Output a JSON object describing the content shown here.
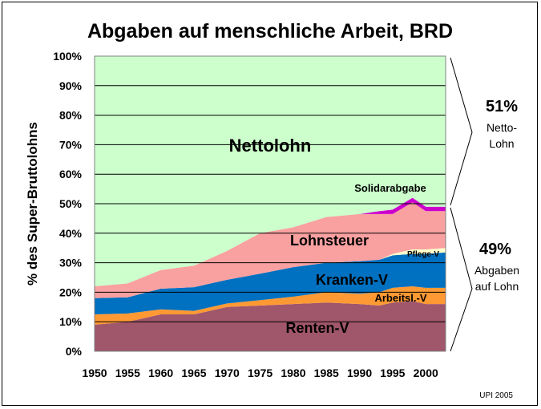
{
  "chart_data": {
    "type": "area",
    "stacked": true,
    "title": "Abgaben auf menschliche Arbeit, BRD",
    "ylabel": "% des Super-Bruttolohns",
    "xlabel": "",
    "ylim": [
      0,
      100
    ],
    "xlim": [
      1950,
      2003
    ],
    "grid": true,
    "y_ticks": [
      "0%",
      "10%",
      "20%",
      "30%",
      "40%",
      "50%",
      "60%",
      "70%",
      "80%",
      "90%",
      "100%"
    ],
    "x_ticks": [
      "1950",
      "1955",
      "1960",
      "1965",
      "1970",
      "1975",
      "1980",
      "1985",
      "1990",
      "1995",
      "2000"
    ],
    "x": [
      1950,
      1955,
      1960,
      1965,
      1970,
      1975,
      1980,
      1985,
      1990,
      1993,
      1995,
      1998,
      2000,
      2003
    ],
    "series": [
      {
        "name": "Renten-V",
        "color": "#a0566b",
        "values": [
          9,
          10,
          12.5,
          12.5,
          15,
          15.5,
          16,
          16.5,
          16,
          15.5,
          16.5,
          17,
          16,
          16
        ]
      },
      {
        "name": "Arbeitsl.-V",
        "color": "#ff9933",
        "values": [
          3.5,
          2.8,
          1.7,
          1.2,
          1.2,
          1.8,
          2.5,
          3.5,
          3.5,
          4.5,
          5,
          5,
          5.5,
          5.5
        ]
      },
      {
        "name": "Kranken-V",
        "color": "#0070c0",
        "values": [
          5.5,
          5.5,
          7,
          8,
          8,
          9,
          10,
          10,
          11,
          11,
          11,
          11,
          11.5,
          12
        ]
      },
      {
        "name": "Pflege-V",
        "color": "#ffffcc",
        "values": [
          0,
          0,
          0,
          0,
          0,
          0,
          0,
          0,
          0,
          0,
          0.5,
          1.5,
          1.5,
          1.5
        ]
      },
      {
        "name": "Lohnsteuer",
        "color": "#f9a0a0",
        "values": [
          4,
          4.7,
          6.3,
          7.3,
          9.8,
          13.7,
          13.5,
          15.5,
          16,
          15.5,
          13.5,
          16,
          13,
          12.5
        ]
      },
      {
        "name": "Solidarabgabe",
        "color": "#cc00cc",
        "values": [
          0,
          0,
          0,
          0,
          0,
          0,
          0,
          0,
          0,
          1,
          1.5,
          1.5,
          1.5,
          1.5
        ]
      },
      {
        "name": "Nettolohn",
        "color": "#ccffcc",
        "values": [
          78,
          77,
          72.5,
          71,
          66,
          60,
          58,
          54.5,
          53.5,
          52.5,
          52,
          48,
          51,
          51
        ]
      }
    ],
    "area_labels": {
      "nettolohn": "Nettolohn",
      "solidarabgabe": "Solidarabgabe",
      "lohnsteuer": "Lohnsteuer",
      "pflege": "Pflege-V",
      "kranken": "Kranken-V",
      "arbeitsl": "Arbeitsl.-V",
      "renten": "Renten-V"
    },
    "annotations": {
      "netto_pct": "51%",
      "netto_label_1": "Netto-",
      "netto_label_2": "Lohn",
      "abgaben_pct": "49%",
      "abgaben_label_1": "Abgaben",
      "abgaben_label_2": "auf Lohn",
      "credit": "UPI 2005"
    },
    "colors": {
      "gridline": "#000000",
      "plot_border": "#808080"
    }
  }
}
